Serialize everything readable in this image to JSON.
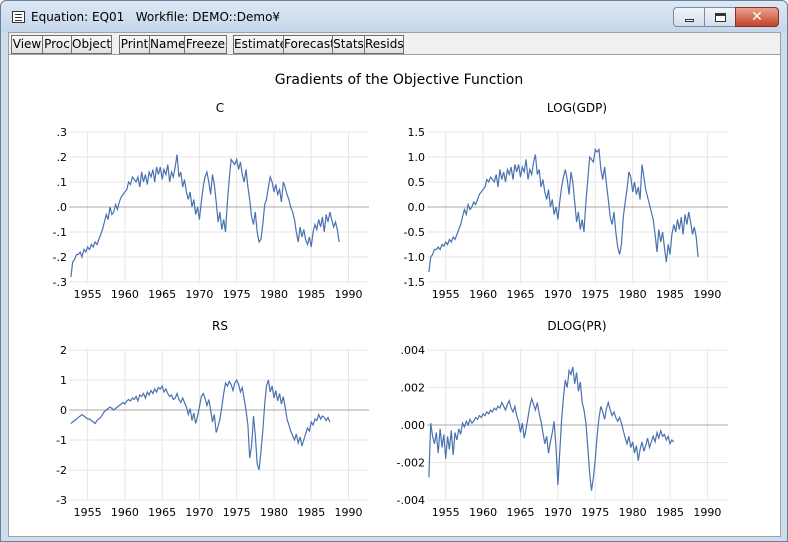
{
  "window": {
    "title": "Equation: EQ01   Workfile: DEMO::Demo¥"
  },
  "toolbar": {
    "buttons": [
      "View",
      "Proc",
      "Object",
      "Print",
      "Name",
      "Freeze",
      "Estimate",
      "Forecast",
      "Stats",
      "Resids"
    ]
  },
  "colors": {
    "series_line": "#4a72b0",
    "zero_line": "#a8a8a8",
    "grid_line": "#e6e6e6"
  },
  "chart_data": [
    {
      "type": "line",
      "title": "C",
      "ylim": [
        -0.3,
        0.3
      ],
      "yticks": [
        ".3",
        ".2",
        ".1",
        ".0",
        "-.1",
        "-.2",
        "-.3"
      ],
      "ytick_values": [
        0.3,
        0.2,
        0.1,
        0.0,
        -0.1,
        -0.2,
        -0.3
      ],
      "xlim": [
        1952.5,
        1992.75
      ],
      "xticks": [
        "1955",
        "1960",
        "1965",
        "1970",
        "1975",
        "1980",
        "1985",
        "1990"
      ],
      "series": [
        {
          "start": 1952.75,
          "step": 0.25,
          "values": [
            -0.28,
            -0.22,
            -0.21,
            -0.19,
            -0.19,
            -0.18,
            -0.2,
            -0.17,
            -0.18,
            -0.16,
            -0.17,
            -0.15,
            -0.16,
            -0.14,
            -0.15,
            -0.13,
            -0.11,
            -0.09,
            -0.06,
            -0.03,
            -0.05,
            0.0,
            -0.03,
            -0.02,
            0.01,
            -0.01,
            0.02,
            0.04,
            0.05,
            0.06,
            0.07,
            0.1,
            0.09,
            0.12,
            0.11,
            0.1,
            0.12,
            0.08,
            0.14,
            0.1,
            0.13,
            0.09,
            0.14,
            0.12,
            0.15,
            0.1,
            0.16,
            0.13,
            0.16,
            0.11,
            0.15,
            0.13,
            0.17,
            0.1,
            0.14,
            0.12,
            0.16,
            0.21,
            0.12,
            0.14,
            0.08,
            0.11,
            0.06,
            0.03,
            0.06,
            0.0,
            0.03,
            -0.03,
            0.0,
            -0.05,
            0.02,
            0.08,
            0.12,
            0.14,
            0.1,
            0.05,
            0.13,
            0.09,
            0.02,
            -0.06,
            -0.02,
            -0.09,
            -0.05,
            -0.1,
            0.02,
            0.11,
            0.19,
            0.18,
            0.17,
            0.19,
            0.15,
            0.18,
            0.13,
            0.1,
            0.15,
            0.08,
            0.03,
            -0.04,
            -0.07,
            -0.02,
            -0.1,
            -0.14,
            -0.13,
            -0.07,
            0.01,
            0.03,
            0.08,
            0.12,
            0.1,
            0.06,
            0.09,
            0.05,
            0.07,
            0.02,
            0.1,
            0.08,
            0.05,
            0.03,
            0.0,
            -0.02,
            -0.05,
            -0.1,
            -0.14,
            -0.08,
            -0.12,
            -0.09,
            -0.13,
            -0.15,
            -0.12,
            -0.16,
            -0.1,
            -0.07,
            -0.09,
            -0.05,
            -0.08,
            -0.04,
            -0.1,
            -0.03,
            -0.06,
            -0.02,
            -0.05,
            -0.08,
            -0.06,
            -0.09,
            -0.14
          ]
        }
      ]
    },
    {
      "type": "line",
      "title": "LOG(GDP)",
      "ylim": [
        -1.5,
        1.5
      ],
      "yticks": [
        "1.5",
        "1.0",
        "0.5",
        "0.0",
        "-0.5",
        "-1.0",
        "-1.5"
      ],
      "ytick_values": [
        1.5,
        1.0,
        0.5,
        0.0,
        -0.5,
        -1.0,
        -1.5
      ],
      "xlim": [
        1952.5,
        1992.75
      ],
      "xticks": [
        "1955",
        "1960",
        "1965",
        "1970",
        "1975",
        "1980",
        "1985",
        "1990"
      ],
      "series": [
        {
          "start": 1952.75,
          "step": 0.25,
          "values": [
            -1.3,
            -1.0,
            -0.95,
            -0.85,
            -0.85,
            -0.8,
            -0.85,
            -0.75,
            -0.78,
            -0.7,
            -0.75,
            -0.65,
            -0.7,
            -0.6,
            -0.65,
            -0.55,
            -0.45,
            -0.35,
            -0.2,
            -0.05,
            -0.15,
            0.05,
            -0.05,
            0.0,
            0.1,
            0.05,
            0.15,
            0.25,
            0.3,
            0.35,
            0.4,
            0.55,
            0.5,
            0.6,
            0.55,
            0.5,
            0.65,
            0.4,
            0.75,
            0.55,
            0.7,
            0.5,
            0.75,
            0.65,
            0.8,
            0.55,
            0.85,
            0.7,
            0.85,
            0.6,
            0.8,
            0.7,
            0.95,
            0.55,
            0.75,
            0.65,
            0.9,
            1.05,
            0.65,
            0.75,
            0.4,
            0.55,
            0.3,
            0.15,
            0.35,
            0.0,
            0.15,
            -0.15,
            0.0,
            -0.25,
            0.1,
            0.4,
            0.6,
            0.75,
            0.55,
            0.25,
            0.7,
            0.5,
            0.1,
            -0.3,
            -0.1,
            -0.45,
            -0.25,
            -0.5,
            0.1,
            0.55,
            1.0,
            0.95,
            0.9,
            1.15,
            1.1,
            1.15,
            0.75,
            0.55,
            0.8,
            0.45,
            0.15,
            -0.2,
            -0.35,
            -0.1,
            -0.5,
            -0.8,
            -0.95,
            -0.75,
            -0.2,
            0.1,
            0.35,
            0.7,
            0.6,
            0.3,
            0.5,
            0.25,
            0.4,
            0.15,
            0.85,
            0.6,
            0.35,
            0.2,
            0.05,
            -0.1,
            -0.25,
            -0.55,
            -0.9,
            -0.45,
            -0.7,
            -0.5,
            -0.8,
            -1.1,
            -0.75,
            -0.95,
            -0.55,
            -0.35,
            -0.5,
            -0.25,
            -0.45,
            -0.2,
            -0.55,
            -0.15,
            -0.35,
            -0.1,
            -0.3,
            -0.55,
            -0.4,
            -0.6,
            -1.0
          ]
        }
      ]
    },
    {
      "type": "line",
      "title": "RS",
      "ylim": [
        -3,
        2
      ],
      "yticks": [
        "2",
        "1",
        "0",
        "-1",
        "-2",
        "-3"
      ],
      "ytick_values": [
        2,
        1,
        0,
        -1,
        -2,
        -3
      ],
      "xlim": [
        1952.5,
        1992.75
      ],
      "xticks": [
        "1955",
        "1960",
        "1965",
        "1970",
        "1975",
        "1980",
        "1985",
        "1990"
      ],
      "series": [
        {
          "start": 1952.75,
          "step": 0.25,
          "values": [
            -0.45,
            -0.4,
            -0.35,
            -0.3,
            -0.25,
            -0.2,
            -0.15,
            -0.2,
            -0.25,
            -0.3,
            -0.3,
            -0.35,
            -0.4,
            -0.45,
            -0.35,
            -0.3,
            -0.25,
            -0.15,
            -0.05,
            0.0,
            0.05,
            0.1,
            0.05,
            0.0,
            0.05,
            0.1,
            0.15,
            0.2,
            0.25,
            0.2,
            0.3,
            0.35,
            0.3,
            0.4,
            0.35,
            0.45,
            0.3,
            0.5,
            0.45,
            0.55,
            0.4,
            0.6,
            0.5,
            0.65,
            0.55,
            0.7,
            0.6,
            0.75,
            0.7,
            0.8,
            0.6,
            0.7,
            0.55,
            0.45,
            0.5,
            0.35,
            0.4,
            0.55,
            0.35,
            0.25,
            0.4,
            0.25,
            0.1,
            -0.15,
            0.05,
            -0.35,
            -0.1,
            -0.45,
            -0.2,
            0.1,
            0.45,
            0.55,
            0.4,
            0.15,
            0.35,
            0.0,
            -0.4,
            -0.15,
            -0.75,
            -0.55,
            -0.3,
            0.1,
            0.55,
            0.9,
            0.8,
            0.95,
            0.85,
            0.65,
            0.9,
            1.0,
            0.85,
            0.6,
            0.75,
            0.35,
            0.0,
            -0.5,
            -1.6,
            -1.2,
            -0.2,
            -0.85,
            -1.8,
            -2.0,
            -1.4,
            -0.7,
            0.2,
            0.8,
            1.0,
            0.6,
            0.8,
            0.4,
            0.65,
            0.3,
            0.55,
            0.2,
            0.45,
            0.1,
            -0.3,
            -0.5,
            -0.7,
            -0.85,
            -1.0,
            -0.8,
            -1.1,
            -0.9,
            -1.2,
            -1.0,
            -0.8,
            -0.6,
            -0.7,
            -0.4,
            -0.5,
            -0.3,
            -0.35,
            -0.15,
            -0.3,
            -0.2,
            -0.25,
            -0.35,
            -0.25,
            -0.4
          ]
        }
      ]
    },
    {
      "type": "line",
      "title": "DLOG(PR)",
      "ylim": [
        -0.004,
        0.004
      ],
      "yticks": [
        ".004",
        ".002",
        ".000",
        "-.002",
        "-.004"
      ],
      "ytick_values": [
        0.004,
        0.002,
        0.0,
        -0.002,
        -0.004
      ],
      "xlim": [
        1952.5,
        1992.75
      ],
      "xticks": [
        "1955",
        "1960",
        "1965",
        "1970",
        "1975",
        "1980",
        "1985",
        "1990"
      ],
      "series": [
        {
          "start": 1952.75,
          "step": 0.25,
          "values": [
            -0.0028,
            0.0001,
            -0.0006,
            -0.001,
            -0.0004,
            -0.0015,
            -0.0002,
            -0.0012,
            -0.0005,
            -0.0018,
            -0.0006,
            -0.0013,
            -0.0003,
            -0.0016,
            -0.0004,
            -0.0008,
            -0.0002,
            -0.0005,
            0.0001,
            -0.0001,
            0.0002,
            0.0,
            0.0003,
            0.0001,
            0.0002,
            0.0004,
            0.0003,
            0.0005,
            0.0004,
            0.0006,
            0.0005,
            0.0007,
            0.0006,
            0.0008,
            0.0007,
            0.0009,
            0.0008,
            0.001,
            0.0009,
            0.0012,
            0.001,
            0.0008,
            0.0011,
            0.0013,
            0.0009,
            0.0007,
            0.001,
            0.0005,
            0.0002,
            -0.0004,
            0.0001,
            -0.0007,
            -0.0002,
            0.0004,
            0.001,
            0.0014,
            0.0011,
            0.0008,
            0.0012,
            0.0006,
            0.0002,
            -0.0004,
            -0.001,
            -0.0006,
            -0.0015,
            -0.0009,
            -0.0004,
            0.0002,
            -0.0012,
            -0.0032,
            -0.0015,
            0.0003,
            0.0015,
            0.0024,
            0.002,
            0.0029,
            0.0027,
            0.0031,
            0.0022,
            0.0028,
            0.0018,
            0.0023,
            0.0012,
            0.0008,
            0.0001,
            -0.0012,
            -0.0026,
            -0.0035,
            -0.0028,
            -0.0018,
            -0.0006,
            0.0004,
            0.001,
            0.0007,
            0.0003,
            0.0009,
            0.0012,
            0.0008,
            0.0005,
            0.0007,
            0.0004,
            0.0002,
            0.0004,
            0.0001,
            -0.0003,
            -0.0007,
            -0.001,
            -0.0006,
            -0.0012,
            -0.0009,
            -0.0015,
            -0.0011,
            -0.0019,
            -0.0013,
            -0.0009,
            -0.0014,
            -0.0011,
            -0.0007,
            -0.0012,
            -0.0009,
            -0.0006,
            -0.0009,
            -0.0004,
            -0.0007,
            -0.0003,
            -0.0006,
            -0.0005,
            -0.0008,
            -0.0006,
            -0.001,
            -0.0008,
            -0.0009
          ]
        }
      ]
    }
  ],
  "graph": {
    "title": "Gradients of the Objective Function"
  }
}
